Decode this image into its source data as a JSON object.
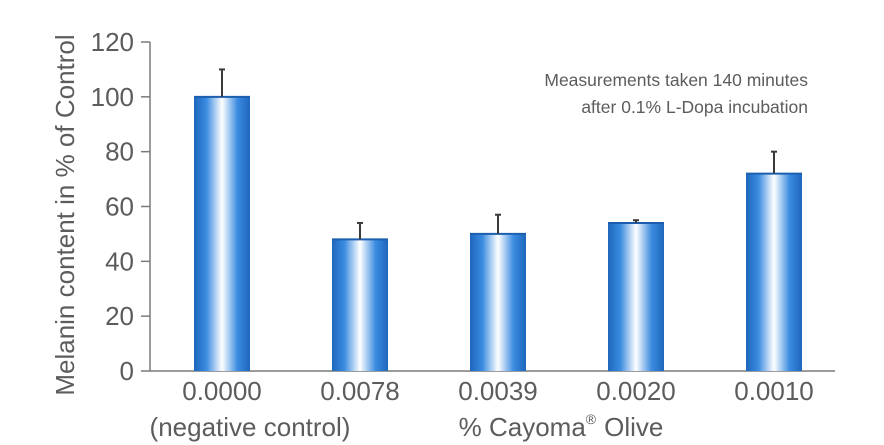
{
  "chart_data": {
    "type": "bar",
    "categories": [
      "0.0000",
      "0.0078",
      "0.0039",
      "0.0020",
      "0.0010"
    ],
    "category_sublabels": [
      "(negative control)",
      "",
      "",
      "",
      ""
    ],
    "values": [
      100,
      48,
      50,
      54,
      72
    ],
    "errors": [
      10,
      6,
      7,
      1,
      8
    ],
    "ylim": [
      0,
      120
    ],
    "yticks": [
      0,
      20,
      40,
      60,
      80,
      100,
      120
    ],
    "ylabel": "Melanin content in % of Control",
    "xlabel_prefix": "% Cayoma",
    "xlabel_mark": "®",
    "xlabel_suffix": "Olive",
    "annotation_line1": "Measurements taken 140 minutes",
    "annotation_line2": "after 0.1% L-Dopa incubation",
    "grid": false,
    "colors": {
      "bar_edge": "#1f6fc4",
      "bar_mid": "#3c8fe0",
      "bar_center": "#ffffff",
      "axis": "#7a7a7a",
      "error_bar": "#3a3a3a",
      "text": "#5c5c5c"
    }
  }
}
